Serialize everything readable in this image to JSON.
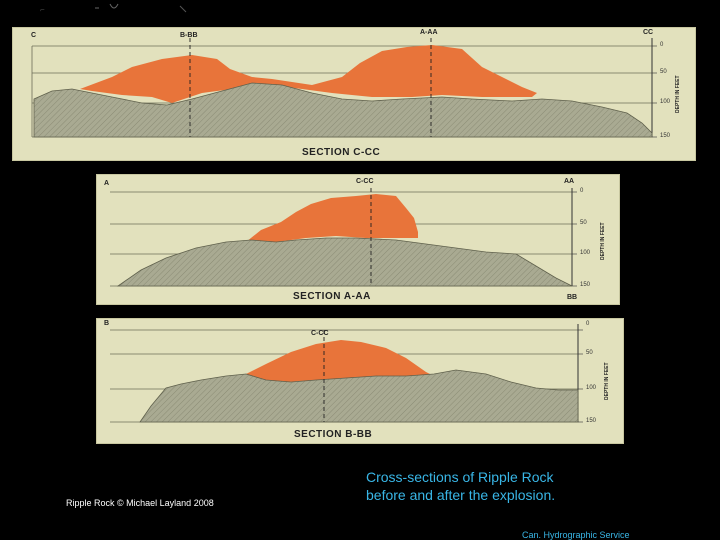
{
  "top_mark": "à",
  "panels": {
    "c_cc": {
      "left_label": "C",
      "mid_label": "B-BB",
      "right_mid_label": "A-AA",
      "right_label": "CC",
      "title": "SECTION C-CC",
      "axis_title": "DEPTH IN FEET",
      "ticks": [
        "0",
        "50",
        "100",
        "150"
      ]
    },
    "a_aa": {
      "left_label": "A",
      "mid_label": "C-CC",
      "right_label": "AA",
      "bottom_right_label": "BB",
      "title": "SECTION A-AA",
      "axis_title": "DEPTH IN FEET",
      "ticks": [
        "0",
        "50",
        "100",
        "150"
      ]
    },
    "b_bb": {
      "left_label": "B",
      "mid_label": "C-CC",
      "title": "SECTION B-BB",
      "axis_title": "DEPTH IN FEET",
      "ticks": [
        "0",
        "50",
        "100",
        "150"
      ]
    }
  },
  "caption_line1": "Cross-sections of Ripple Rock",
  "caption_line2": "before and after the explosion.",
  "credit": "Ripple Rock © Michael Layland 2008",
  "source": "Can. Hydrographic Service",
  "colors": {
    "rock_removed": "#e8743a",
    "seabed": "#a8a993",
    "paper": "#e2e1bd"
  }
}
